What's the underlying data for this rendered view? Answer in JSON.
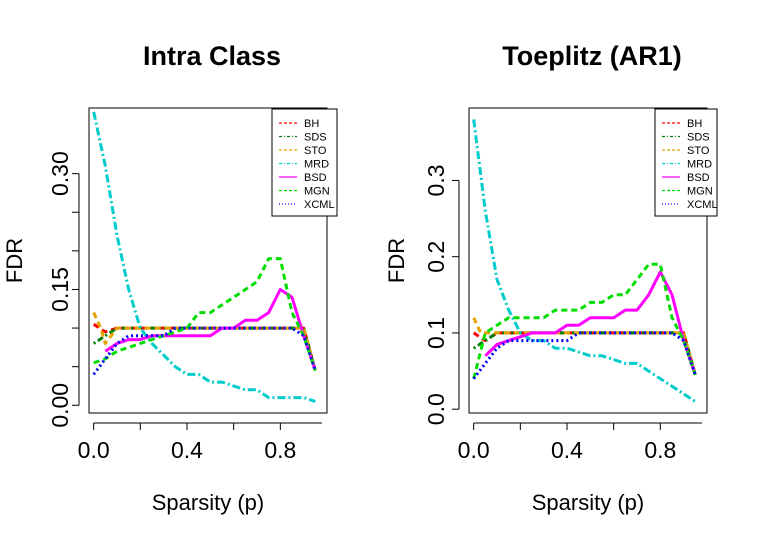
{
  "chart_data": [
    {
      "type": "line",
      "title": "Intra Class",
      "xlabel": "Sparsity (p)",
      "ylabel": "FDR",
      "xlim": [
        -0.02,
        1.0
      ],
      "ylim": [
        -0.01,
        0.385
      ],
      "xticks": [
        0.0,
        0.4,
        0.8
      ],
      "xtick_labels": [
        "0.0",
        "0.4",
        "0.8"
      ],
      "yticks": [
        0.0,
        0.15,
        0.3
      ],
      "ytick_labels": [
        "0.00",
        "0.15",
        "0.30"
      ],
      "yminor": [
        0.05,
        0.1,
        0.2,
        0.25
      ],
      "legend_position": "top-right",
      "series": [
        {
          "name": "BH",
          "color": "#ff0000",
          "dash": "6,4",
          "x": [
            0.0,
            0.05,
            0.1,
            0.9,
            0.95
          ],
          "values": [
            0.105,
            0.095,
            0.1,
            0.1,
            0.045
          ]
        },
        {
          "name": "SDS",
          "color": "#008000",
          "dash": "2,3,6,3",
          "x": [
            0.0,
            0.1,
            0.9,
            0.95
          ],
          "values": [
            0.08,
            0.1,
            0.1,
            0.045
          ]
        },
        {
          "name": "STO",
          "color": "#e6a000",
          "dash": "6,4",
          "x": [
            0.0,
            0.03,
            0.05,
            0.1,
            0.9,
            0.95
          ],
          "values": [
            0.12,
            0.1,
            0.08,
            0.1,
            0.1,
            0.045
          ]
        },
        {
          "name": "MRD",
          "color": "#00cccc",
          "dash": "8,3,2,3",
          "x": [
            0.0,
            0.05,
            0.1,
            0.15,
            0.2,
            0.25,
            0.3,
            0.35,
            0.4,
            0.45,
            0.5,
            0.55,
            0.6,
            0.65,
            0.7,
            0.75,
            0.8,
            0.85,
            0.9,
            0.95
          ],
          "values": [
            0.38,
            0.31,
            0.22,
            0.15,
            0.1,
            0.08,
            0.065,
            0.05,
            0.04,
            0.04,
            0.03,
            0.03,
            0.025,
            0.02,
            0.02,
            0.01,
            0.01,
            0.01,
            0.01,
            0.005
          ]
        },
        {
          "name": "BSD",
          "color": "#ff00ff",
          "dash": "",
          "x": [
            0.05,
            0.1,
            0.15,
            0.2,
            0.25,
            0.3,
            0.35,
            0.4,
            0.45,
            0.5,
            0.55,
            0.6,
            0.65,
            0.7,
            0.75,
            0.8,
            0.85,
            0.9,
            0.95
          ],
          "values": [
            0.07,
            0.08,
            0.085,
            0.085,
            0.09,
            0.09,
            0.09,
            0.09,
            0.09,
            0.09,
            0.1,
            0.1,
            0.11,
            0.11,
            0.12,
            0.15,
            0.14,
            0.09,
            0.045
          ]
        },
        {
          "name": "MGN",
          "color": "#00dd00",
          "dash": "6,4",
          "x": [
            0.0,
            0.05,
            0.1,
            0.15,
            0.2,
            0.25,
            0.3,
            0.35,
            0.4,
            0.45,
            0.5,
            0.55,
            0.6,
            0.65,
            0.7,
            0.75,
            0.8,
            0.85,
            0.9,
            0.95
          ],
          "values": [
            0.055,
            0.06,
            0.07,
            0.075,
            0.08,
            0.085,
            0.09,
            0.095,
            0.1,
            0.12,
            0.12,
            0.13,
            0.14,
            0.15,
            0.16,
            0.19,
            0.19,
            0.12,
            0.09,
            0.045
          ]
        },
        {
          "name": "XCML",
          "color": "#0000ff",
          "dash": "2,3",
          "x": [
            0.0,
            0.05,
            0.1,
            0.15,
            0.2,
            0.25,
            0.3,
            0.35,
            0.4,
            0.45,
            0.5,
            0.55,
            0.6,
            0.65,
            0.7,
            0.75,
            0.8,
            0.85,
            0.9,
            0.95
          ],
          "values": [
            0.04,
            0.06,
            0.08,
            0.09,
            0.09,
            0.09,
            0.09,
            0.1,
            0.1,
            0.1,
            0.1,
            0.1,
            0.1,
            0.1,
            0.1,
            0.1,
            0.1,
            0.1,
            0.09,
            0.045
          ]
        }
      ]
    },
    {
      "type": "line",
      "title": "Toeplitz (AR1)",
      "xlabel": "Sparsity (p)",
      "ylabel": "FDR",
      "xlim": [
        -0.02,
        1.0
      ],
      "ylim": [
        -0.005,
        0.395
      ],
      "xticks": [
        0.0,
        0.4,
        0.8
      ],
      "xtick_labels": [
        "0.0",
        "0.4",
        "0.8"
      ],
      "yticks": [
        0.0,
        0.1,
        0.2,
        0.3
      ],
      "ytick_labels": [
        "0.0",
        "0.1",
        "0.2",
        "0.3"
      ],
      "yminor": [],
      "legend_position": "top-right",
      "series": [
        {
          "name": "BH",
          "color": "#ff0000",
          "dash": "6,4",
          "x": [
            0.0,
            0.05,
            0.1,
            0.9,
            0.95
          ],
          "values": [
            0.1,
            0.09,
            0.1,
            0.1,
            0.045
          ]
        },
        {
          "name": "SDS",
          "color": "#008000",
          "dash": "2,3,6,3",
          "x": [
            0.0,
            0.1,
            0.9,
            0.95
          ],
          "values": [
            0.08,
            0.1,
            0.1,
            0.045
          ]
        },
        {
          "name": "STO",
          "color": "#e6a000",
          "dash": "6,4",
          "x": [
            0.0,
            0.03,
            0.1,
            0.9,
            0.95
          ],
          "values": [
            0.12,
            0.1,
            0.1,
            0.1,
            0.045
          ]
        },
        {
          "name": "MRD",
          "color": "#00cccc",
          "dash": "8,3,2,3",
          "x": [
            0.0,
            0.05,
            0.1,
            0.15,
            0.2,
            0.25,
            0.3,
            0.35,
            0.4,
            0.45,
            0.5,
            0.55,
            0.6,
            0.65,
            0.7,
            0.75,
            0.8,
            0.85,
            0.9,
            0.95
          ],
          "values": [
            0.38,
            0.26,
            0.17,
            0.13,
            0.1,
            0.09,
            0.09,
            0.08,
            0.08,
            0.075,
            0.07,
            0.07,
            0.065,
            0.06,
            0.06,
            0.05,
            0.04,
            0.03,
            0.02,
            0.01
          ]
        },
        {
          "name": "BSD",
          "color": "#ff00ff",
          "dash": "",
          "x": [
            0.05,
            0.1,
            0.15,
            0.2,
            0.25,
            0.3,
            0.35,
            0.4,
            0.45,
            0.5,
            0.55,
            0.6,
            0.65,
            0.7,
            0.75,
            0.8,
            0.85,
            0.9,
            0.95
          ],
          "values": [
            0.07,
            0.085,
            0.09,
            0.095,
            0.1,
            0.1,
            0.1,
            0.11,
            0.11,
            0.12,
            0.12,
            0.12,
            0.13,
            0.13,
            0.15,
            0.18,
            0.15,
            0.09,
            0.045
          ]
        },
        {
          "name": "MGN",
          "color": "#00dd00",
          "dash": "6,4",
          "x": [
            0.0,
            0.05,
            0.1,
            0.15,
            0.2,
            0.25,
            0.3,
            0.35,
            0.4,
            0.45,
            0.5,
            0.55,
            0.6,
            0.65,
            0.7,
            0.75,
            0.8,
            0.85,
            0.9,
            0.95
          ],
          "values": [
            0.04,
            0.1,
            0.11,
            0.12,
            0.12,
            0.12,
            0.12,
            0.13,
            0.13,
            0.13,
            0.14,
            0.14,
            0.15,
            0.15,
            0.17,
            0.19,
            0.19,
            0.12,
            0.09,
            0.045
          ]
        },
        {
          "name": "XCML",
          "color": "#0000ff",
          "dash": "2,3",
          "x": [
            0.0,
            0.05,
            0.1,
            0.15,
            0.2,
            0.25,
            0.3,
            0.35,
            0.4,
            0.45,
            0.5,
            0.55,
            0.6,
            0.65,
            0.7,
            0.75,
            0.8,
            0.85,
            0.9,
            0.95
          ],
          "values": [
            0.04,
            0.06,
            0.08,
            0.09,
            0.09,
            0.09,
            0.09,
            0.09,
            0.09,
            0.1,
            0.1,
            0.1,
            0.1,
            0.1,
            0.1,
            0.1,
            0.1,
            0.1,
            0.09,
            0.045
          ]
        }
      ]
    }
  ]
}
